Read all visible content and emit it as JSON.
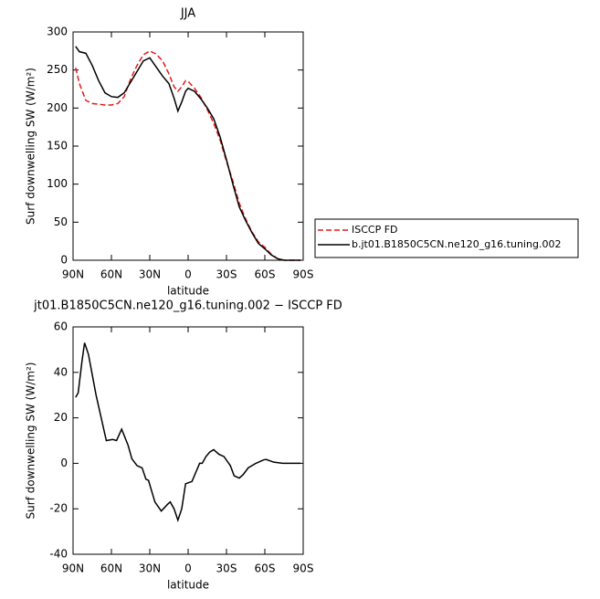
{
  "chart_data": [
    {
      "type": "line",
      "title": "JJA",
      "xlabel": "latitude",
      "ylabel": "Surf downwelling SW (W/m²)",
      "x": [
        88,
        85,
        80,
        75,
        70,
        65,
        60,
        55,
        50,
        45,
        40,
        35,
        30,
        25,
        20,
        15,
        11,
        8,
        5,
        2,
        0,
        -5,
        -10,
        -15,
        -20,
        -25,
        -30,
        -35,
        -40,
        -45,
        -50,
        -55,
        -60,
        -65,
        -70,
        -75,
        -80,
        -85,
        -88
      ],
      "series": [
        {
          "name": "ISCCP FD",
          "color": "#e41a1c",
          "dash": true,
          "values": [
            253,
            232,
            210,
            206,
            205,
            204,
            204,
            206,
            215,
            238,
            256,
            270,
            275,
            271,
            262,
            245,
            228,
            222,
            228,
            236,
            235,
            226,
            214,
            198,
            180,
            158,
            130,
            104,
            75,
            54,
            37,
            24,
            17,
            8,
            2,
            0,
            0,
            0,
            0
          ]
        },
        {
          "name": "b.jt01.B1850C5CN.ne120_g16.tuning.002",
          "color": "#000000",
          "dash": false,
          "values": [
            281,
            274,
            272,
            256,
            236,
            220,
            215,
            214,
            220,
            234,
            248,
            262,
            266,
            254,
            242,
            232,
            213,
            196,
            208,
            222,
            226,
            222,
            212,
            200,
            186,
            162,
            132,
            100,
            70,
            52,
            36,
            22,
            15,
            7,
            2,
            0,
            0,
            0,
            0
          ]
        }
      ],
      "xlim": [
        90,
        -90
      ],
      "xticks": [
        {
          "value": 90,
          "label": "90N"
        },
        {
          "value": 60,
          "label": "60N"
        },
        {
          "value": 30,
          "label": "30N"
        },
        0,
        {
          "value": -30,
          "label": "30S"
        },
        {
          "value": -60,
          "label": "60S"
        },
        {
          "value": -90,
          "label": "90S"
        }
      ],
      "ylim": [
        0,
        300
      ],
      "yticks": [
        0,
        50,
        100,
        150,
        200,
        250,
        300
      ],
      "legend": "right"
    },
    {
      "type": "line",
      "title": "jt01.B1850C5CN.ne120_g16.tuning.002 − ISCCP FD",
      "xlabel": "latitude",
      "ylabel": "Surf downwelling SW (W/m²)",
      "x": [
        88,
        86,
        83,
        81,
        78,
        72,
        68,
        64,
        59,
        56,
        52,
        47,
        44,
        40,
        36,
        33,
        31,
        26,
        21,
        16,
        14,
        11,
        8,
        5,
        2,
        -3,
        -9,
        -11,
        -14,
        -17,
        -20,
        -24,
        -28,
        -33,
        -36,
        -40,
        -43,
        -47,
        -53,
        -59,
        -61,
        -67,
        -74,
        -80,
        -88
      ],
      "series": [
        {
          "color": "#000000",
          "dash": false,
          "values": [
            29,
            31,
            45,
            53,
            48,
            30,
            20,
            10,
            10.5,
            10,
            15,
            8,
            2,
            -1,
            -2,
            -7,
            -7.5,
            -17,
            -21,
            -18,
            -17,
            -20,
            -25,
            -20,
            -9,
            -8,
            0,
            0,
            3,
            5,
            6,
            4,
            3,
            -1,
            -5.5,
            -6.5,
            -5,
            -2,
            0,
            1.5,
            1.7,
            0.5,
            0,
            0,
            0
          ]
        }
      ],
      "xlim": [
        90,
        -90
      ],
      "xticks": [
        {
          "value": 90,
          "label": "90N"
        },
        {
          "value": 60,
          "label": "60N"
        },
        {
          "value": 30,
          "label": "30N"
        },
        0,
        {
          "value": -30,
          "label": "30S"
        },
        {
          "value": -60,
          "label": "60S"
        },
        {
          "value": -90,
          "label": "90S"
        }
      ],
      "ylim": [
        -40,
        60
      ],
      "yticks": [
        -40,
        -20,
        0,
        20,
        40,
        60
      ]
    }
  ]
}
